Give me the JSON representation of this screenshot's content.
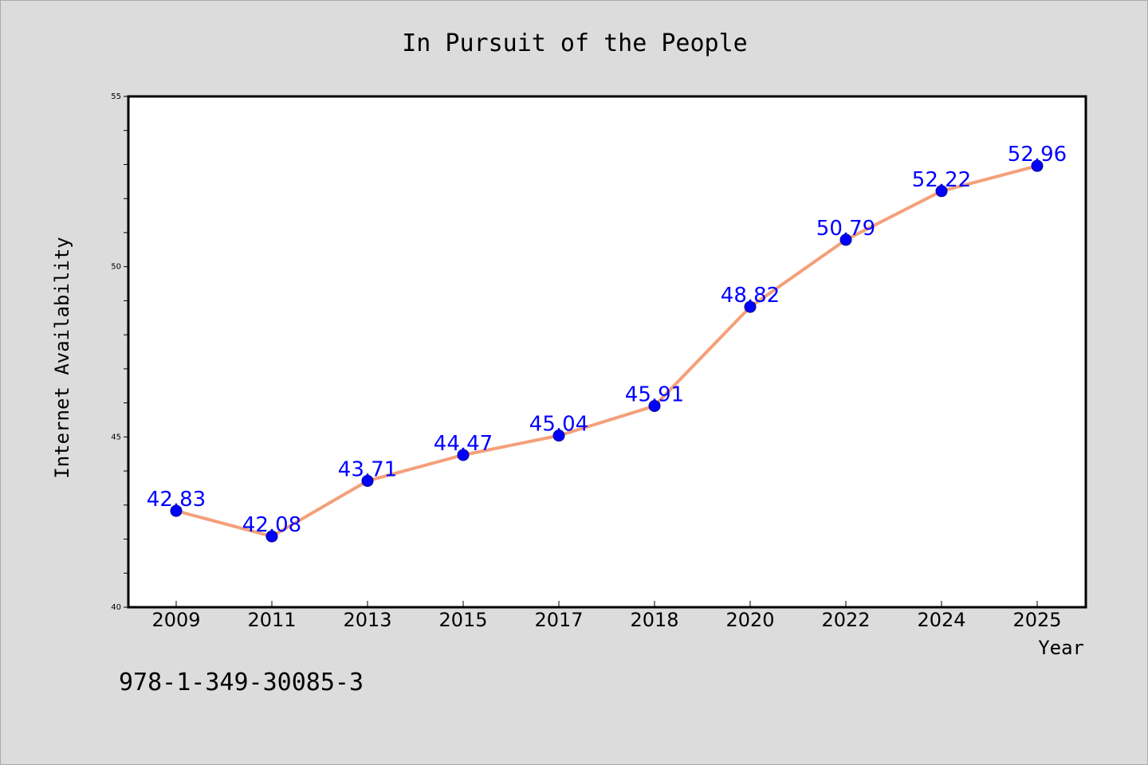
{
  "chart_data": {
    "type": "line",
    "title": "In Pursuit of the People",
    "xlabel": "Year",
    "ylabel": "Internet Availability",
    "categories": [
      "2009",
      "2011",
      "2013",
      "2015",
      "2017",
      "2018",
      "2020",
      "2022",
      "2024",
      "2025"
    ],
    "series": [
      {
        "values": [
          42.83,
          42.08,
          43.71,
          44.47,
          45.04,
          45.91,
          48.82,
          50.79,
          52.22,
          52.96
        ],
        "line_color": "#f4a07a",
        "marker_color": "#0000ff"
      }
    ],
    "data_labels": [
      "42.83",
      "42.08",
      "43.71",
      "44.47",
      "45.04",
      "45.91",
      "48.82",
      "50.79",
      "52.22",
      "52.96"
    ],
    "ylim": [
      40,
      55
    ],
    "yticks": [
      "40",
      "45",
      "50",
      "55"
    ],
    "grid": false,
    "legend": "none"
  },
  "footer": {
    "isbn": "978-1-349-30085-3"
  }
}
